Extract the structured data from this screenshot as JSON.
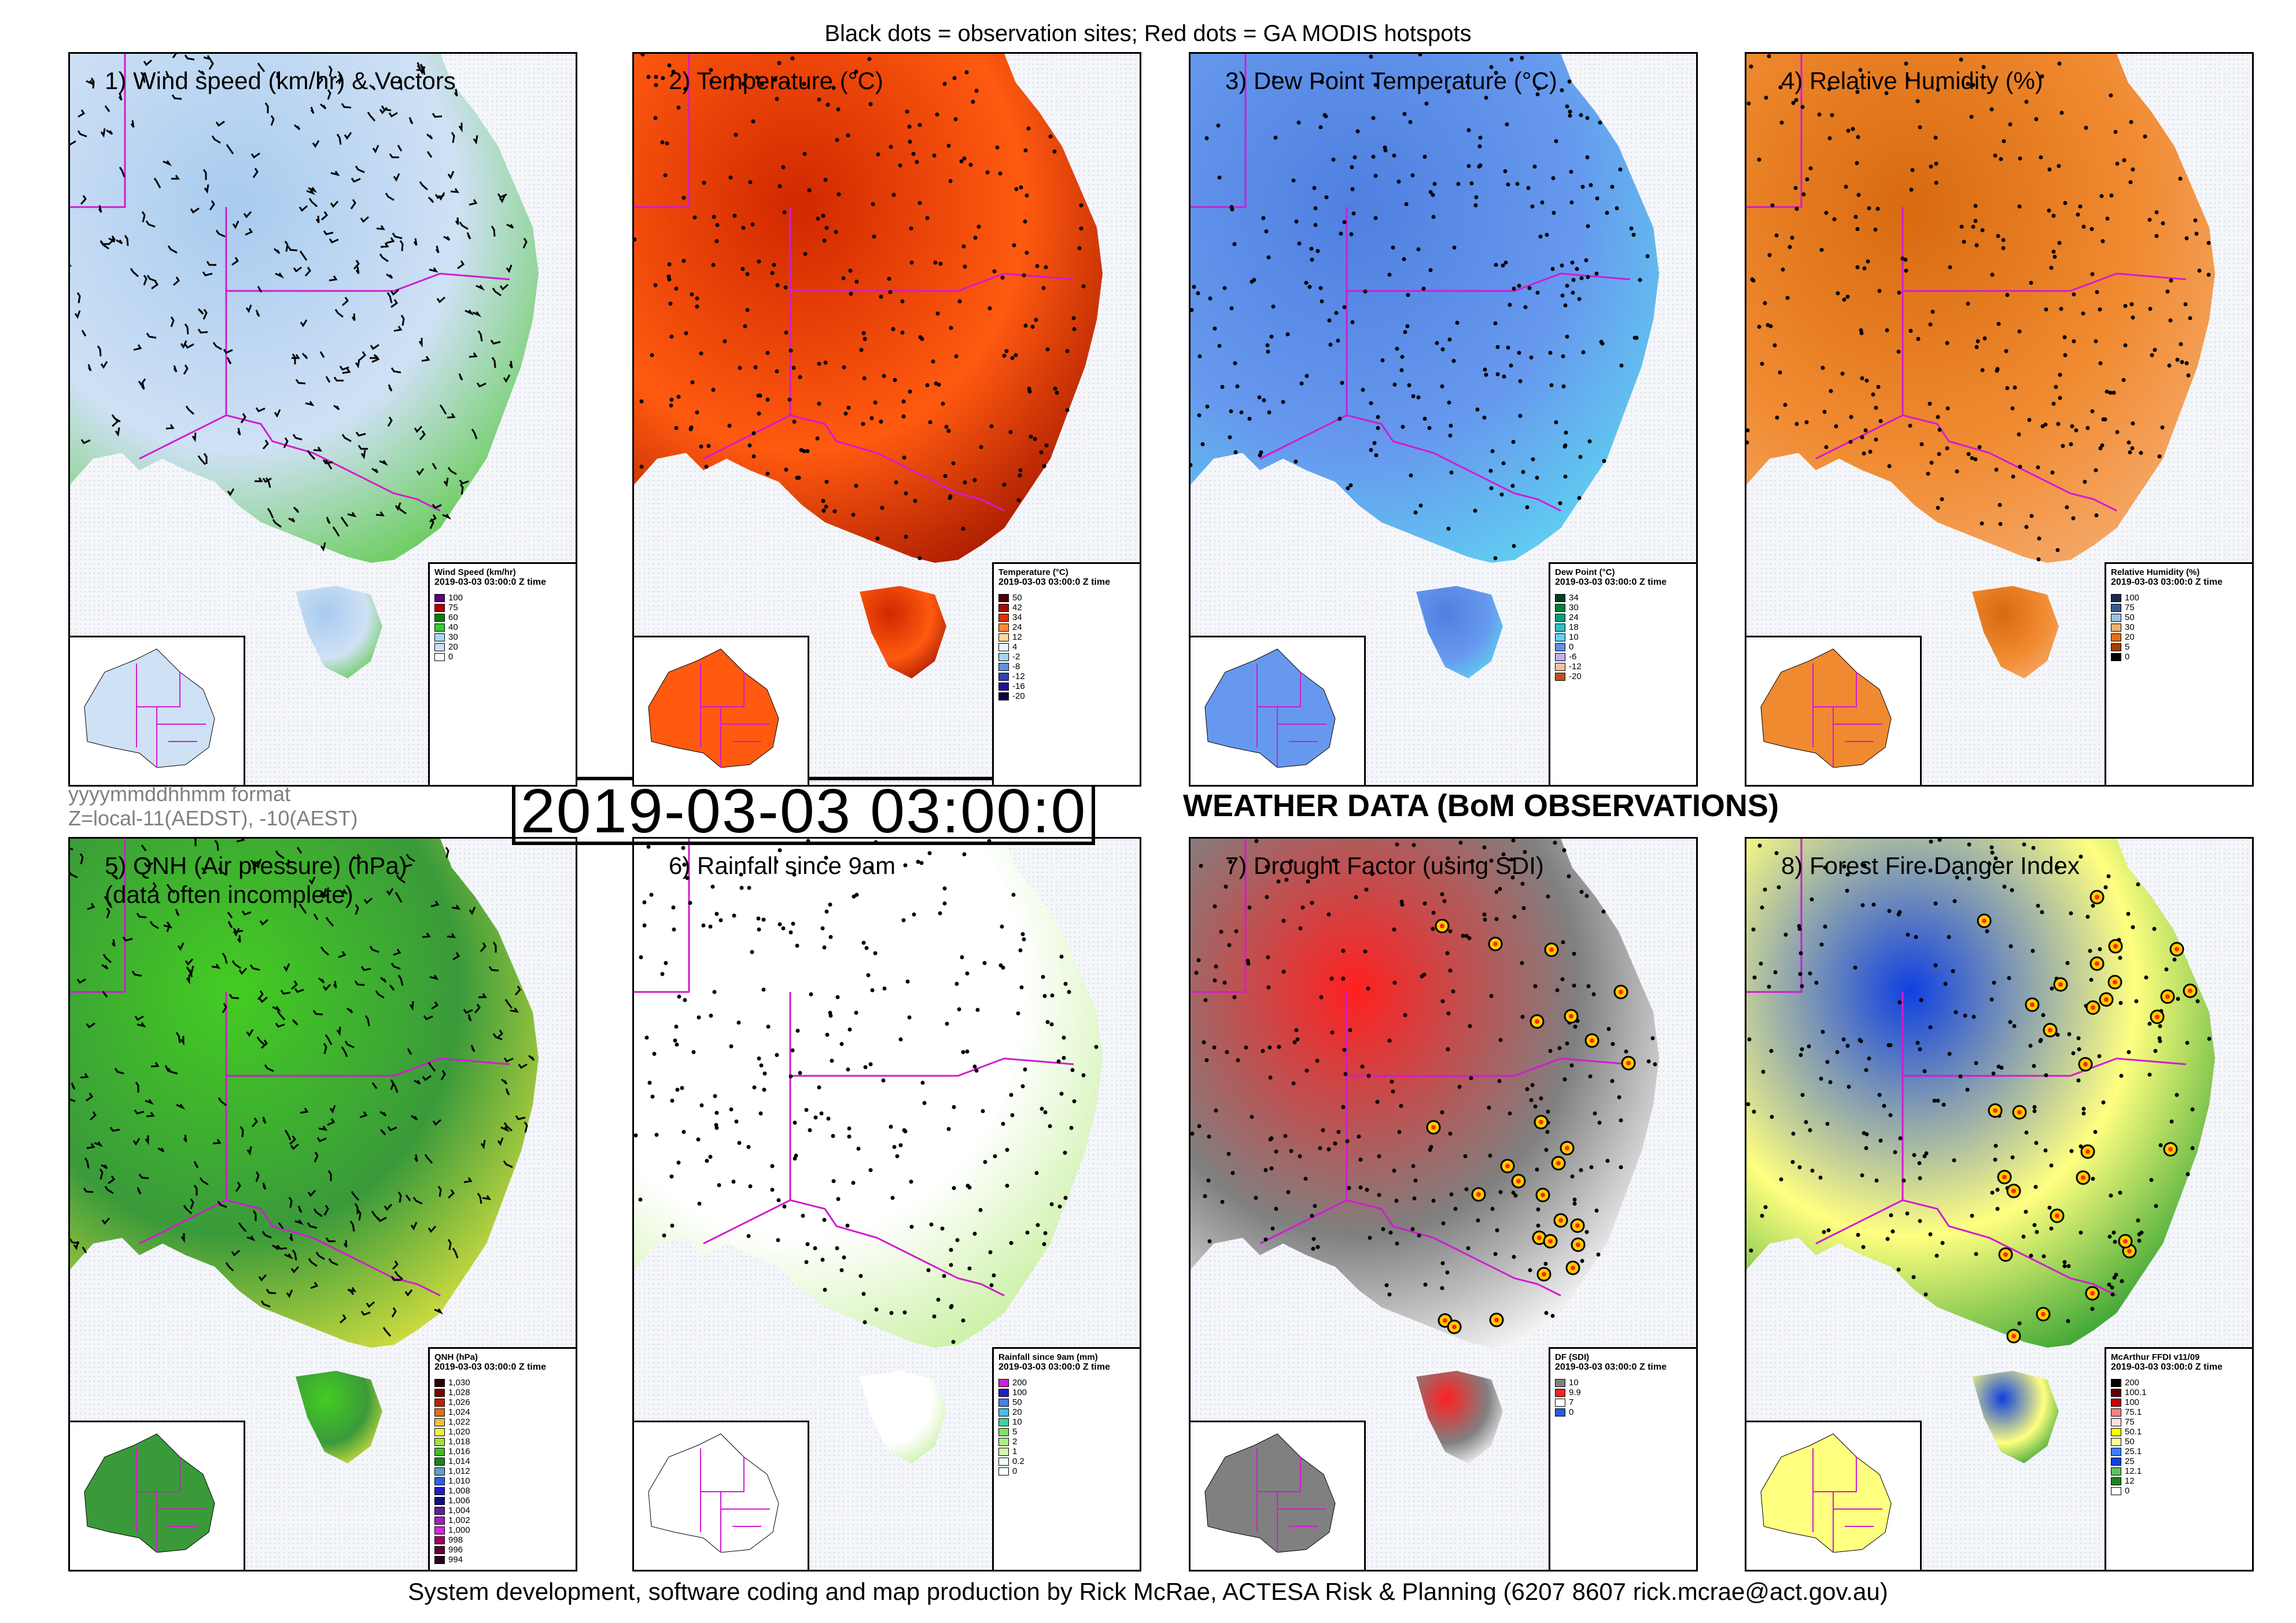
{
  "header": {
    "caption": "Black dots = observation sites; Red dots = GA MODIS hotspots"
  },
  "footer": {
    "credit": "System development, software coding and map production by Rick McRae, ACTESA Risk & Planning (6207 8607 rick.mcrae@act.gov.au)"
  },
  "time_format": {
    "line1": "yyyymmddhhmm format",
    "line2": "Z=local-11(AEDST), -10(AEST)"
  },
  "timestamp": "2019-03-03 03:00:0",
  "section_heading": "WEATHER DATA (BoM OBSERVATIONS)",
  "colors": {
    "state_border": "#d21bd2",
    "ocean": "#f4f6fa",
    "site_dot": "#000000",
    "hotspot": "#ff2a00"
  },
  "panels": [
    {
      "title": "1) Wind speed (km/hr) & Vectors",
      "fill": [
        "#cfe1f5",
        "#a8cbef",
        "#66cc55"
      ],
      "vectors": true,
      "legend": {
        "title": "Wind Speed (km/hr)",
        "subtitle": "2019-03-03 03:00:0 Z time",
        "items": [
          {
            "label": "100",
            "color": "#5a0080"
          },
          {
            "label": "75",
            "color": "#b00000"
          },
          {
            "label": "60",
            "color": "#008000"
          },
          {
            "label": "40",
            "color": "#33cc33"
          },
          {
            "label": "30",
            "color": "#a8d8f0"
          },
          {
            "label": "20",
            "color": "#c8e0f4"
          },
          {
            "label": "0",
            "color": "#ffffff"
          }
        ]
      }
    },
    {
      "title": "2) Temperature (°C)",
      "fill": [
        "#ff5a10",
        "#d02800",
        "#a81a00"
      ],
      "vectors": false,
      "legend": {
        "title": "Temperature (°C)",
        "subtitle": "2019-03-03 03:00:0 Z time",
        "items": [
          {
            "label": "50",
            "color": "#4a0000"
          },
          {
            "label": "42",
            "color": "#a01000"
          },
          {
            "label": "34",
            "color": "#e03000"
          },
          {
            "label": "24",
            "color": "#ff8a30"
          },
          {
            "label": "12",
            "color": "#ffd8a0"
          },
          {
            "label": "4",
            "color": "#e8f4ff"
          },
          {
            "label": "-2",
            "color": "#a8d0f0"
          },
          {
            "label": "-8",
            "color": "#6090e0"
          },
          {
            "label": "-12",
            "color": "#3040c0"
          },
          {
            "label": "-16",
            "color": "#2010a0"
          },
          {
            "label": "-20",
            "color": "#100040"
          }
        ]
      }
    },
    {
      "title": "3) Dew Point Temperature (°C)",
      "fill": [
        "#6699ee",
        "#4f7fe0",
        "#60d0f0"
      ],
      "vectors": false,
      "legend": {
        "title": "Dew Point (°C)",
        "subtitle": "2019-03-03 03:00:0 Z time",
        "items": [
          {
            "label": "34",
            "color": "#004020"
          },
          {
            "label": "30",
            "color": "#008040"
          },
          {
            "label": "24",
            "color": "#00a080"
          },
          {
            "label": "18",
            "color": "#30c0c0"
          },
          {
            "label": "10",
            "color": "#60d0f0"
          },
          {
            "label": "0",
            "color": "#6090e0"
          },
          {
            "label": "-6",
            "color": "#c0b0f0"
          },
          {
            "label": "-12",
            "color": "#f0c0a0"
          },
          {
            "label": "-20",
            "color": "#c05020"
          }
        ]
      }
    },
    {
      "title": "4) Relative Humidity (%)",
      "fill": [
        "#f08a30",
        "#d86a10",
        "#f5a868"
      ],
      "vectors": false,
      "legend": {
        "title": "Relative Humidity (%)",
        "subtitle": "2019-03-03 03:00:0 Z time",
        "items": [
          {
            "label": "100",
            "color": "#1a2a50"
          },
          {
            "label": "75",
            "color": "#3a5a90"
          },
          {
            "label": "50",
            "color": "#a0c0e0"
          },
          {
            "label": "30",
            "color": "#f0b070"
          },
          {
            "label": "20",
            "color": "#e07010"
          },
          {
            "label": "5",
            "color": "#a04000"
          },
          {
            "label": "0",
            "color": "#000000"
          }
        ]
      }
    },
    {
      "title": "5) QNH (Air pressure) (hPa)\n(data often incomplete)",
      "fill": [
        "#3a9a3a",
        "#44cc22",
        "#d8e040"
      ],
      "vectors": true,
      "legend": {
        "title": "QNH (hPa)",
        "subtitle": "2019-03-03 03:00:0 Z time",
        "items": [
          {
            "label": "1,030",
            "color": "#300000"
          },
          {
            "label": "1,028",
            "color": "#800000"
          },
          {
            "label": "1,026",
            "color": "#c02000"
          },
          {
            "label": "1,024",
            "color": "#e07010"
          },
          {
            "label": "1,022",
            "color": "#f0c040"
          },
          {
            "label": "1,020",
            "color": "#f0f040"
          },
          {
            "label": "1,018",
            "color": "#a0e040"
          },
          {
            "label": "1,016",
            "color": "#40c020"
          },
          {
            "label": "1,014",
            "color": "#208020"
          },
          {
            "label": "1,012",
            "color": "#60a0c0"
          },
          {
            "label": "1,010",
            "color": "#3060e0"
          },
          {
            "label": "1,008",
            "color": "#2020c0"
          },
          {
            "label": "1,006",
            "color": "#101080"
          },
          {
            "label": "1,004",
            "color": "#6020a0"
          },
          {
            "label": "1,002",
            "color": "#a020c0"
          },
          {
            "label": "1,000",
            "color": "#e020e0"
          },
          {
            "label": "998",
            "color": "#a00060"
          },
          {
            "label": "996",
            "color": "#600030"
          },
          {
            "label": "994",
            "color": "#300020"
          }
        ]
      }
    },
    {
      "title": "6) Rainfall since 9am",
      "fill": [
        "#ffffff",
        "#ffffff",
        "#c8f0a0"
      ],
      "vectors": false,
      "legend": {
        "title": "Rainfall since 9am (mm)",
        "subtitle": "2019-03-03 03:00:0 Z time",
        "items": [
          {
            "label": "200",
            "color": "#d020d0"
          },
          {
            "label": "100",
            "color": "#2020c0"
          },
          {
            "label": "50",
            "color": "#4080f0"
          },
          {
            "label": "20",
            "color": "#40c0f0"
          },
          {
            "label": "10",
            "color": "#40d0a0"
          },
          {
            "label": "5",
            "color": "#80e060"
          },
          {
            "label": "2",
            "color": "#b0f080"
          },
          {
            "label": "1",
            "color": "#d0f8b0"
          },
          {
            "label": "0.2",
            "color": "#f0fff0"
          },
          {
            "label": "0",
            "color": "#ffffff"
          }
        ]
      }
    },
    {
      "title": "7) Drought Factor (using SDI)",
      "fill": [
        "#808080",
        "#ff2020",
        "#ffffff"
      ],
      "vectors": false,
      "legend": {
        "title": "DF (SDI)",
        "subtitle": "2019-03-03 03:00:0 Z time",
        "items": [
          {
            "label": "10",
            "color": "#808080"
          },
          {
            "label": "9.9",
            "color": "#ff2020"
          },
          {
            "label": "7",
            "color": "#ffffff"
          },
          {
            "label": "0",
            "color": "#2060e0"
          }
        ]
      }
    },
    {
      "title": "8) Forest Fire Danger Index",
      "fill": [
        "#ffff80",
        "#1040e0",
        "#30a030"
      ],
      "vectors": false,
      "legend": {
        "title": "McArthur FFDI v11/09",
        "subtitle": "2019-03-03 03:00:0 Z time",
        "items": [
          {
            "label": "200",
            "color": "#000000"
          },
          {
            "label": "100.1",
            "color": "#600000"
          },
          {
            "label": "100",
            "color": "#c00000"
          },
          {
            "label": "75.1",
            "color": "#ff8080"
          },
          {
            "label": "75",
            "color": "#ffe0e0"
          },
          {
            "label": "50.1",
            "color": "#ffff00"
          },
          {
            "label": "50",
            "color": "#ffffa0"
          },
          {
            "label": "25.1",
            "color": "#4080ff"
          },
          {
            "label": "25",
            "color": "#1040e0"
          },
          {
            "label": "12.1",
            "color": "#60c060"
          },
          {
            "label": "12",
            "color": "#208020"
          },
          {
            "label": "0",
            "color": "#ffffff"
          }
        ]
      }
    }
  ]
}
